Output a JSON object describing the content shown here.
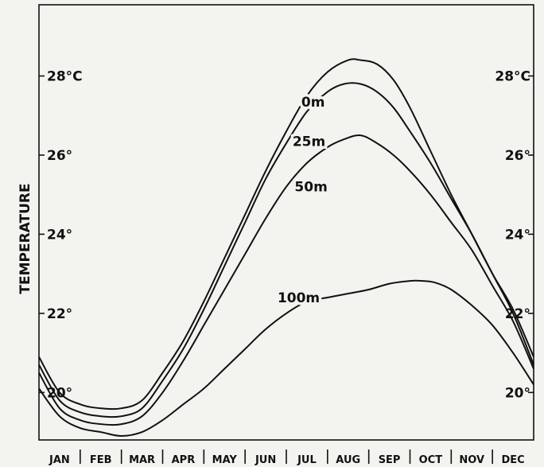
{
  "chart_data": {
    "type": "line",
    "ylabel": "TEMPERATURE",
    "ylim": [
      18.8,
      29.8
    ],
    "y_ticks": [
      {
        "value": 28,
        "label": "28°C"
      },
      {
        "value": 26,
        "label": "26°"
      },
      {
        "value": 24,
        "label": "24°"
      },
      {
        "value": 22,
        "label": "22°"
      },
      {
        "value": 20,
        "label": "20°"
      }
    ],
    "categories": [
      "JAN",
      "FEB",
      "MAR",
      "APR",
      "MAY",
      "JUN",
      "JUL",
      "AUG",
      "SEP",
      "OCT",
      "NOV",
      "DEC"
    ],
    "xlim": [
      0,
      12
    ],
    "series": [
      {
        "name": "0m",
        "color": "#111111",
        "x": [
          0,
          0.5,
          1,
          1.5,
          2,
          2.5,
          3,
          3.5,
          4,
          4.5,
          5,
          5.5,
          6,
          6.5,
          7,
          7.5,
          7.8,
          8.2,
          8.6,
          9,
          9.5,
          10,
          10.5,
          11,
          11.5,
          12
        ],
        "values": [
          20.9,
          20.0,
          19.7,
          19.6,
          19.6,
          19.8,
          20.5,
          21.3,
          22.3,
          23.4,
          24.5,
          25.6,
          26.6,
          27.5,
          28.1,
          28.4,
          28.4,
          28.3,
          27.9,
          27.2,
          26.1,
          25.0,
          24.0,
          23.0,
          22.1,
          20.9
        ]
      },
      {
        "name": "25m",
        "color": "#111111",
        "x": [
          0,
          0.5,
          1,
          1.5,
          2,
          2.5,
          3,
          3.5,
          4,
          4.5,
          5,
          5.5,
          6,
          6.5,
          7,
          7.4,
          7.8,
          8.2,
          8.6,
          9,
          9.5,
          10,
          10.5,
          11,
          11.5,
          12
        ],
        "values": [
          20.7,
          19.8,
          19.5,
          19.4,
          19.4,
          19.6,
          20.3,
          21.1,
          22.1,
          23.2,
          24.3,
          25.4,
          26.3,
          27.1,
          27.6,
          27.8,
          27.8,
          27.6,
          27.2,
          26.6,
          25.8,
          24.9,
          24.0,
          23.0,
          22.0,
          20.7
        ]
      },
      {
        "name": "50m",
        "color": "#111111",
        "x": [
          0,
          0.5,
          1,
          1.5,
          2,
          2.5,
          3,
          3.5,
          4,
          4.5,
          5,
          5.5,
          6,
          6.5,
          7,
          7.4,
          7.8,
          8.2,
          8.6,
          9,
          9.5,
          10,
          10.5,
          11,
          11.5,
          12
        ],
        "values": [
          20.5,
          19.6,
          19.3,
          19.2,
          19.2,
          19.4,
          20.0,
          20.8,
          21.7,
          22.6,
          23.5,
          24.4,
          25.2,
          25.8,
          26.2,
          26.4,
          26.5,
          26.3,
          26.0,
          25.6,
          25.0,
          24.3,
          23.6,
          22.7,
          21.8,
          20.6
        ]
      },
      {
        "name": "100m",
        "color": "#111111",
        "x": [
          0,
          0.5,
          1,
          1.5,
          2,
          2.5,
          3,
          3.5,
          4,
          4.5,
          5,
          5.5,
          6,
          6.5,
          7,
          7.5,
          8,
          8.5,
          9,
          9.3,
          9.6,
          10,
          10.5,
          11,
          11.5,
          12
        ],
        "values": [
          20.1,
          19.4,
          19.1,
          19.0,
          18.9,
          19.0,
          19.3,
          19.7,
          20.1,
          20.6,
          21.1,
          21.6,
          22.0,
          22.3,
          22.4,
          22.5,
          22.6,
          22.75,
          22.82,
          22.82,
          22.78,
          22.6,
          22.2,
          21.7,
          21.0,
          20.2
        ]
      }
    ]
  }
}
